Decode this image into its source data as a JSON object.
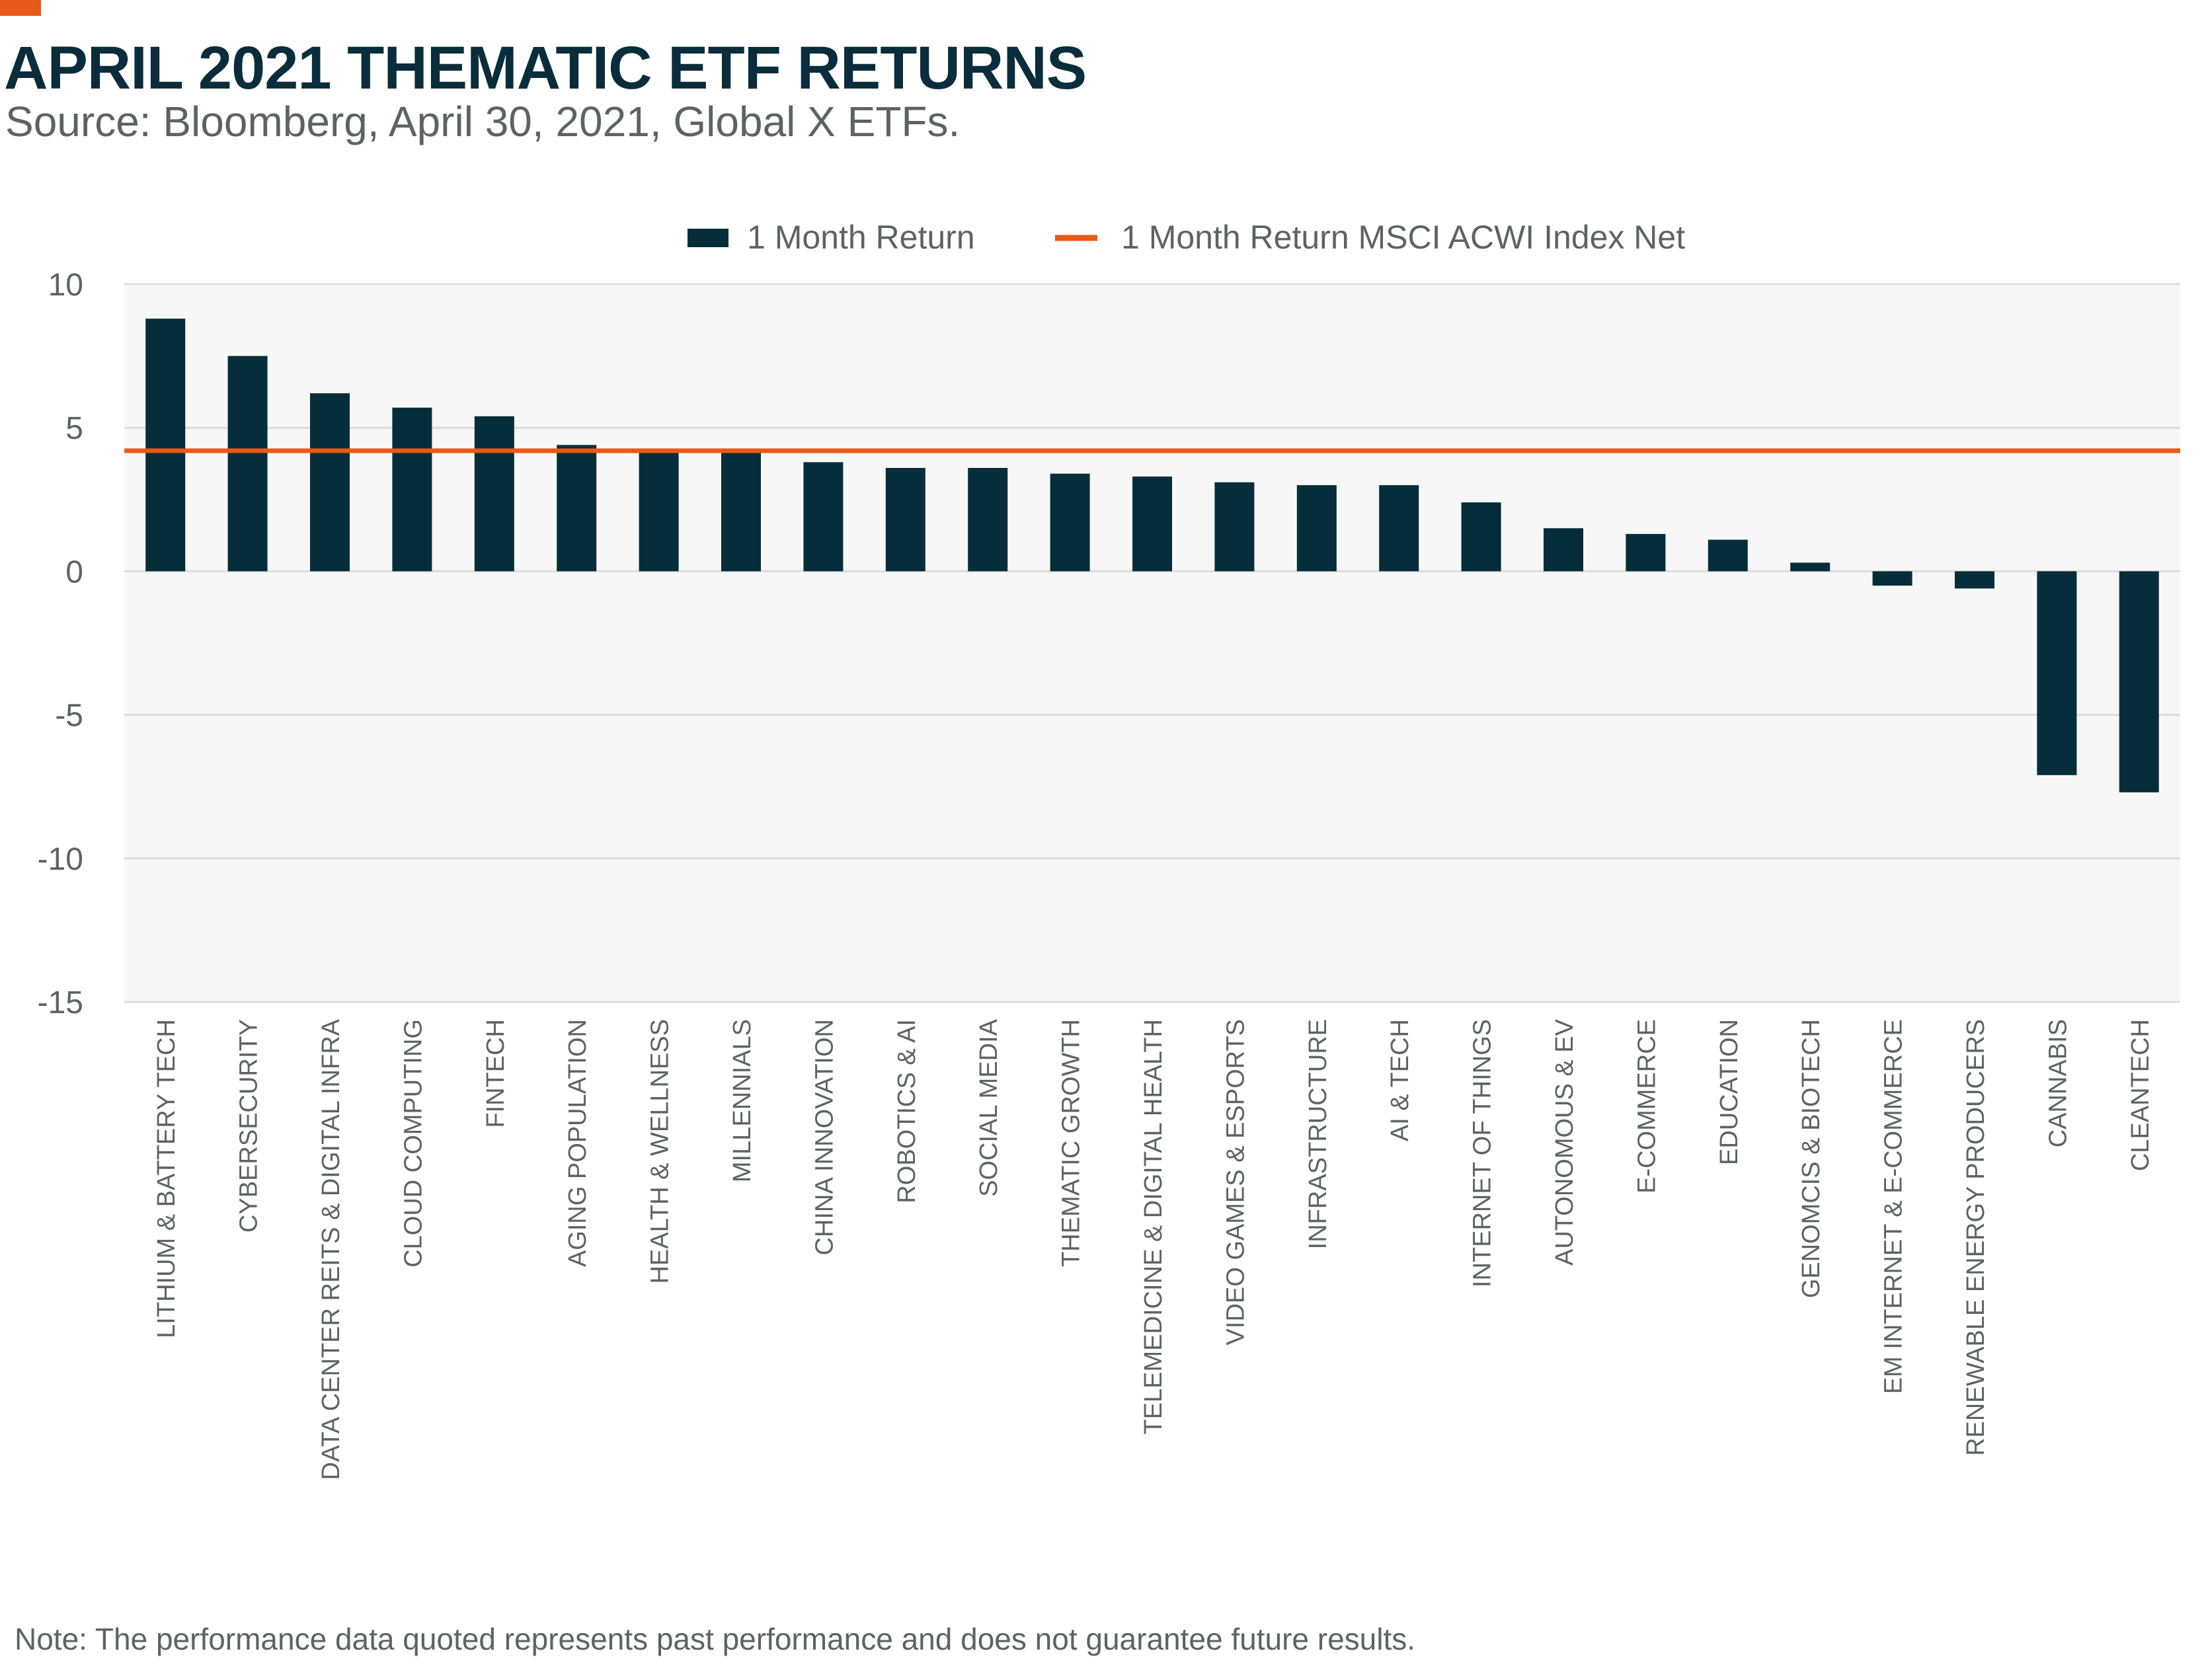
{
  "colors": {
    "accent": "#e8591a",
    "navy": "#0a2d3c",
    "bar": "#062e3a",
    "reference_line": "#e8591a",
    "text_gray": "#5f6263",
    "plot_bg": "#f7f7f7",
    "grid": "#dcdcdc"
  },
  "header": {
    "title": "APRIL 2021 THEMATIC ETF RETURNS",
    "subtitle": "Source: Bloomberg, April 30, 2021, Global X ETFs."
  },
  "footer": {
    "note": "Note: The performance data quoted represents past performance and does not guarantee future results."
  },
  "chart_data": {
    "type": "bar",
    "title": "",
    "xlabel": "",
    "ylabel": "",
    "ylim": [
      -15,
      10
    ],
    "yticks": [
      10,
      5,
      0,
      -5,
      -10,
      -15
    ],
    "grid": true,
    "legend_position": "top-center",
    "categories": [
      "LITHIUM & BATTERY TECH",
      "CYBERSECURITY",
      "DATA CENTER REITS & DIGITAL INFRA",
      "CLOUD COMPUTING",
      "FINTECH",
      "AGING POPULATION",
      "HEALTH & WELLNESS",
      "MILLENNIALS",
      "CHINA INNOVATION",
      "ROBOTICS & AI",
      "SOCIAL MEDIA",
      "THEMATIC GROWTH",
      "TELEMEDICINE & DIGITAL HEALTH",
      "VIDEO GAMES & ESPORTS",
      "INFRASTRUCTURE",
      "AI & TECH",
      "INTERNET OF THINGS",
      "AUTONOMOUS & EV",
      "E-COMMERCE",
      "EDUCATION",
      "GENOMCIS & BIOTECH",
      "EM INTERNET & E-COMMERCE",
      "RENEWABLE ENERGY PRODUCERS",
      "CANNABIS",
      "CLEANTECH"
    ],
    "series": [
      {
        "name": "1 Month Return",
        "type": "bar",
        "values": [
          8.8,
          7.5,
          6.2,
          5.7,
          5.4,
          4.4,
          4.2,
          4.2,
          3.8,
          3.6,
          3.6,
          3.4,
          3.3,
          3.1,
          3.0,
          3.0,
          2.4,
          1.5,
          1.3,
          1.1,
          0.3,
          -0.5,
          -0.6,
          -7.1,
          -7.7
        ]
      },
      {
        "name": "1 Month Return MSCI ACWI Index Net",
        "type": "reference_line",
        "value": 4.2
      }
    ]
  }
}
